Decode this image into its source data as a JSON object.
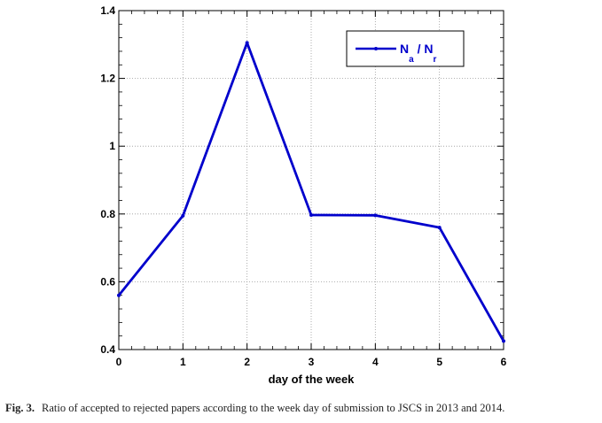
{
  "chart_data": {
    "type": "line",
    "x": [
      0,
      1,
      2,
      3,
      4,
      5,
      6
    ],
    "series": [
      {
        "name": "N_a / N_r",
        "values": [
          0.56,
          0.795,
          1.305,
          0.797,
          0.796,
          0.76,
          0.425
        ]
      }
    ],
    "xlabel": "day of the week",
    "ylabel": "",
    "xlim": [
      0,
      6
    ],
    "ylim": [
      0.4,
      1.4
    ],
    "xticks": [
      "0",
      "1",
      "2",
      "3",
      "4",
      "5",
      "6"
    ],
    "yticks": [
      "0.4",
      "0.6",
      "0.8",
      "1",
      "1.2",
      "1.4"
    ],
    "grid": true,
    "legend_position": "top-right",
    "legend": {
      "main_n": "N",
      "sub_a": "a",
      "slash": " / N",
      "sub_r": "r"
    },
    "line_color": "#0000cc"
  },
  "caption": {
    "label": "Fig. 3.",
    "text": "Ratio of accepted to rejected papers according to the week day of submission to JSCS in 2013 and 2014."
  }
}
